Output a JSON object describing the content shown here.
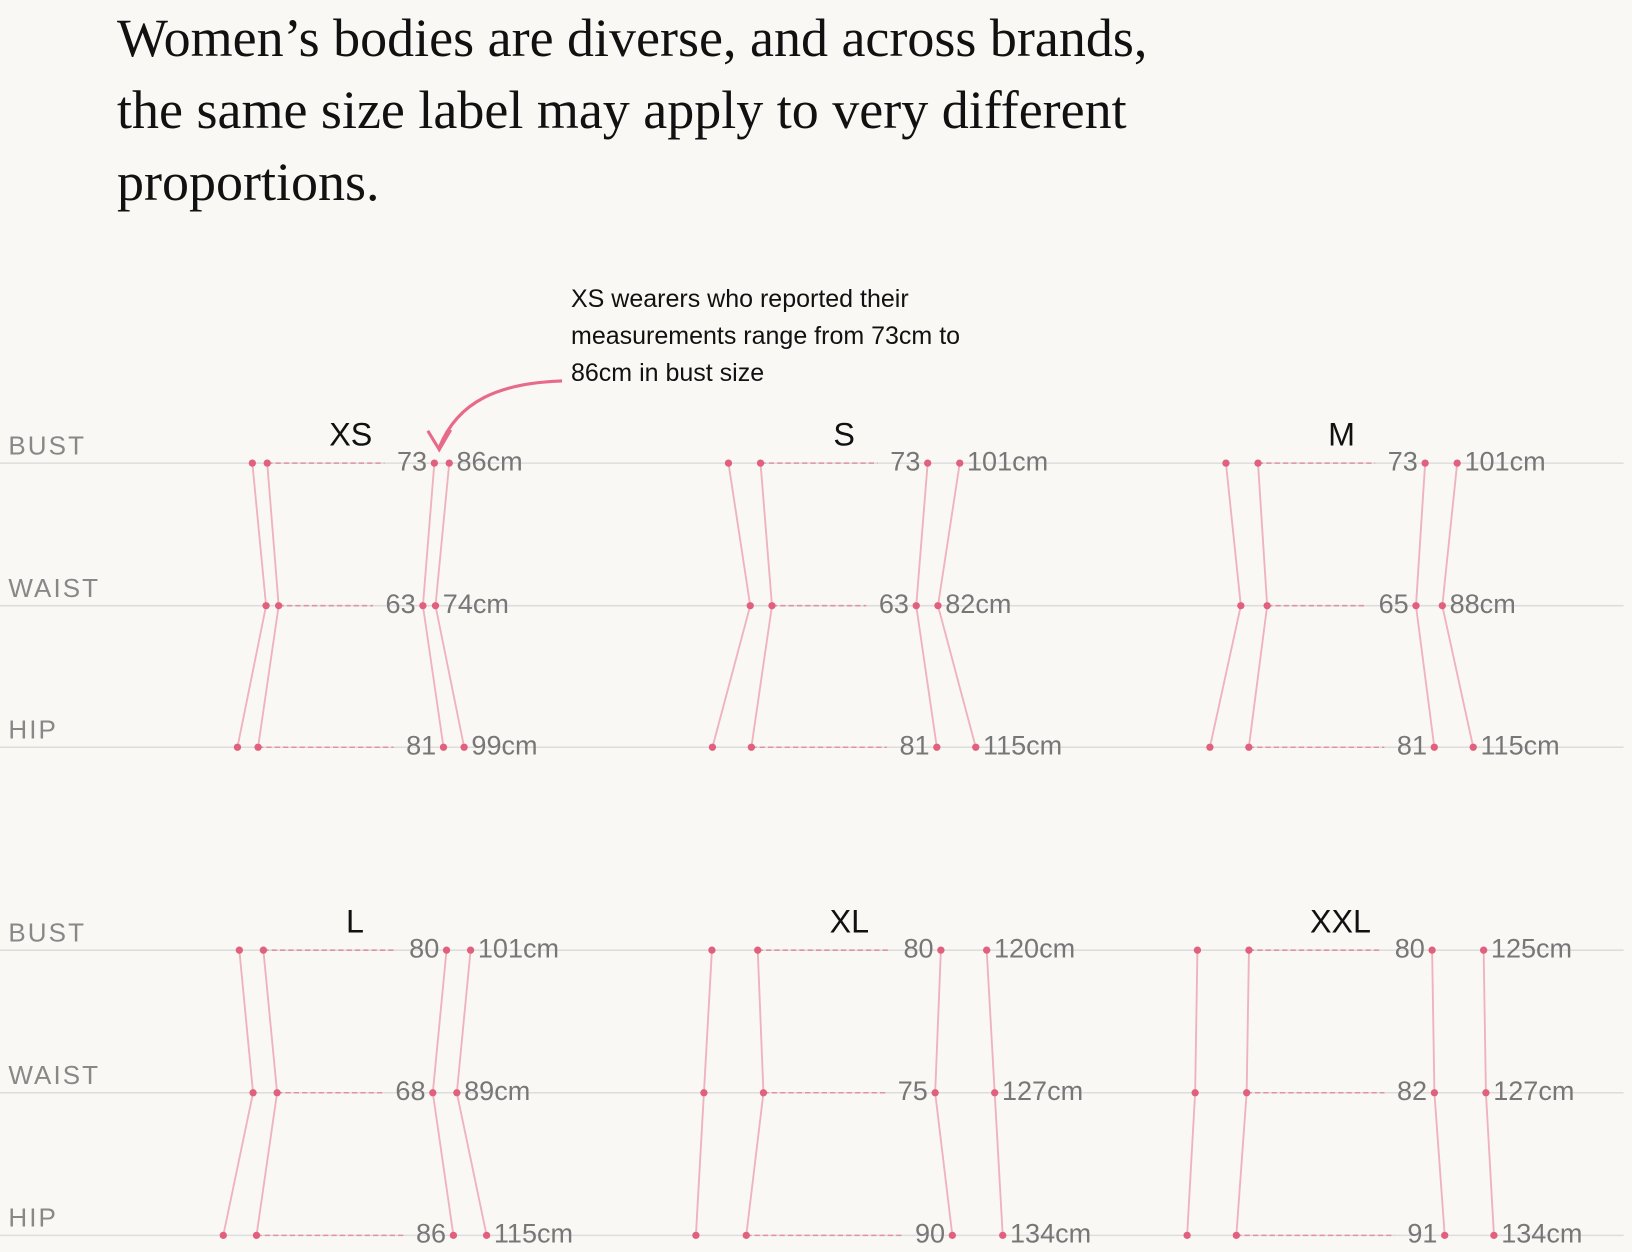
{
  "chart_data": {
    "type": "range-silhouette",
    "title": "Women’s bodies are diverse, and across brands, the same size label may apply to very different proportions.",
    "annotation": "XS wearers who reported their measurements range from 73cm to 86cm in bust size",
    "measures": [
      "BUST",
      "WAIST",
      "HIP"
    ],
    "color": "#e0607e",
    "panels": [
      {
        "size": "XS",
        "min": [
          73,
          63,
          81
        ],
        "max": [
          86,
          74,
          99
        ],
        "max_labels": [
          "86cm",
          "74cm",
          "99cm"
        ]
      },
      {
        "size": "S",
        "min": [
          73,
          63,
          81
        ],
        "max": [
          101,
          82,
          115
        ],
        "max_labels": [
          "101cm",
          "82cm",
          "115cm"
        ]
      },
      {
        "size": "M",
        "min": [
          73,
          65,
          81
        ],
        "max": [
          101,
          88,
          115
        ],
        "max_labels": [
          "101cm",
          "88cm",
          "115cm"
        ]
      },
      {
        "size": "L",
        "min": [
          80,
          68,
          86
        ],
        "max": [
          101,
          89,
          115
        ],
        "max_labels": [
          "101cm",
          "89cm",
          "115cm"
        ]
      },
      {
        "size": "XL",
        "min": [
          80,
          75,
          90
        ],
        "max": [
          120,
          127,
          134
        ],
        "max_labels": [
          "120cm",
          "127cm",
          "134cm"
        ]
      },
      {
        "size": "XXL",
        "min": [
          80,
          82,
          91
        ],
        "max": [
          125,
          127,
          134
        ],
        "max_labels": [
          "125cm",
          "127cm",
          "134cm"
        ]
      }
    ]
  }
}
